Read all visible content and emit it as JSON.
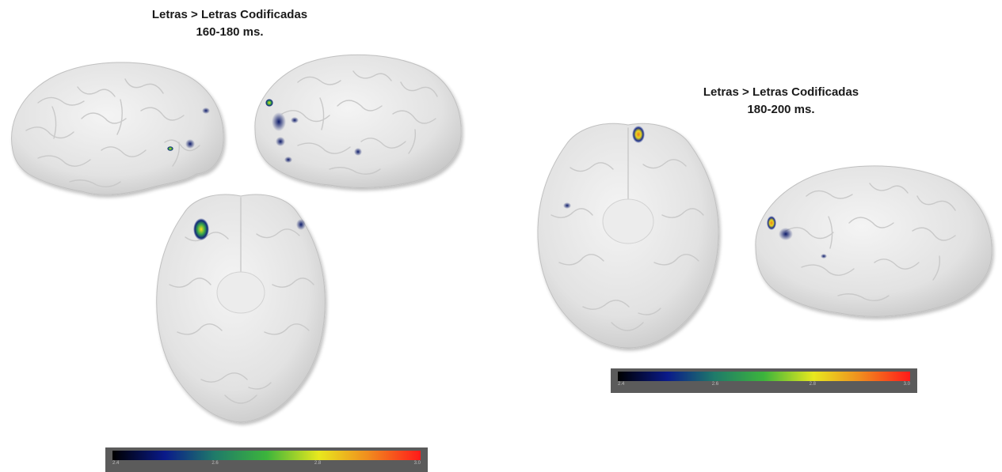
{
  "panels": [
    {
      "title": "Letras > Letras Codificadas",
      "window": "160-180 ms.",
      "views": [
        "lateral-right",
        "lateral-left",
        "ventral"
      ],
      "colorbar": {
        "min": 2.4,
        "ticks": [
          "2.4",
          "2.6",
          "2.8",
          "3.0"
        ],
        "max": 3.0
      }
    },
    {
      "title": "Letras > Letras Codificadas",
      "window": "180-200 ms.",
      "views": [
        "ventral",
        "lateral-left"
      ],
      "colorbar": {
        "min": 2.4,
        "ticks": [
          "2.4",
          "2.6",
          "2.8",
          "3.0"
        ],
        "max": 3.0
      }
    }
  ],
  "colormap": [
    "#000000",
    "#0a1a8a",
    "#1f7a6a",
    "#3cb43c",
    "#e8e81e",
    "#f08c1e",
    "#ff1a1a"
  ]
}
